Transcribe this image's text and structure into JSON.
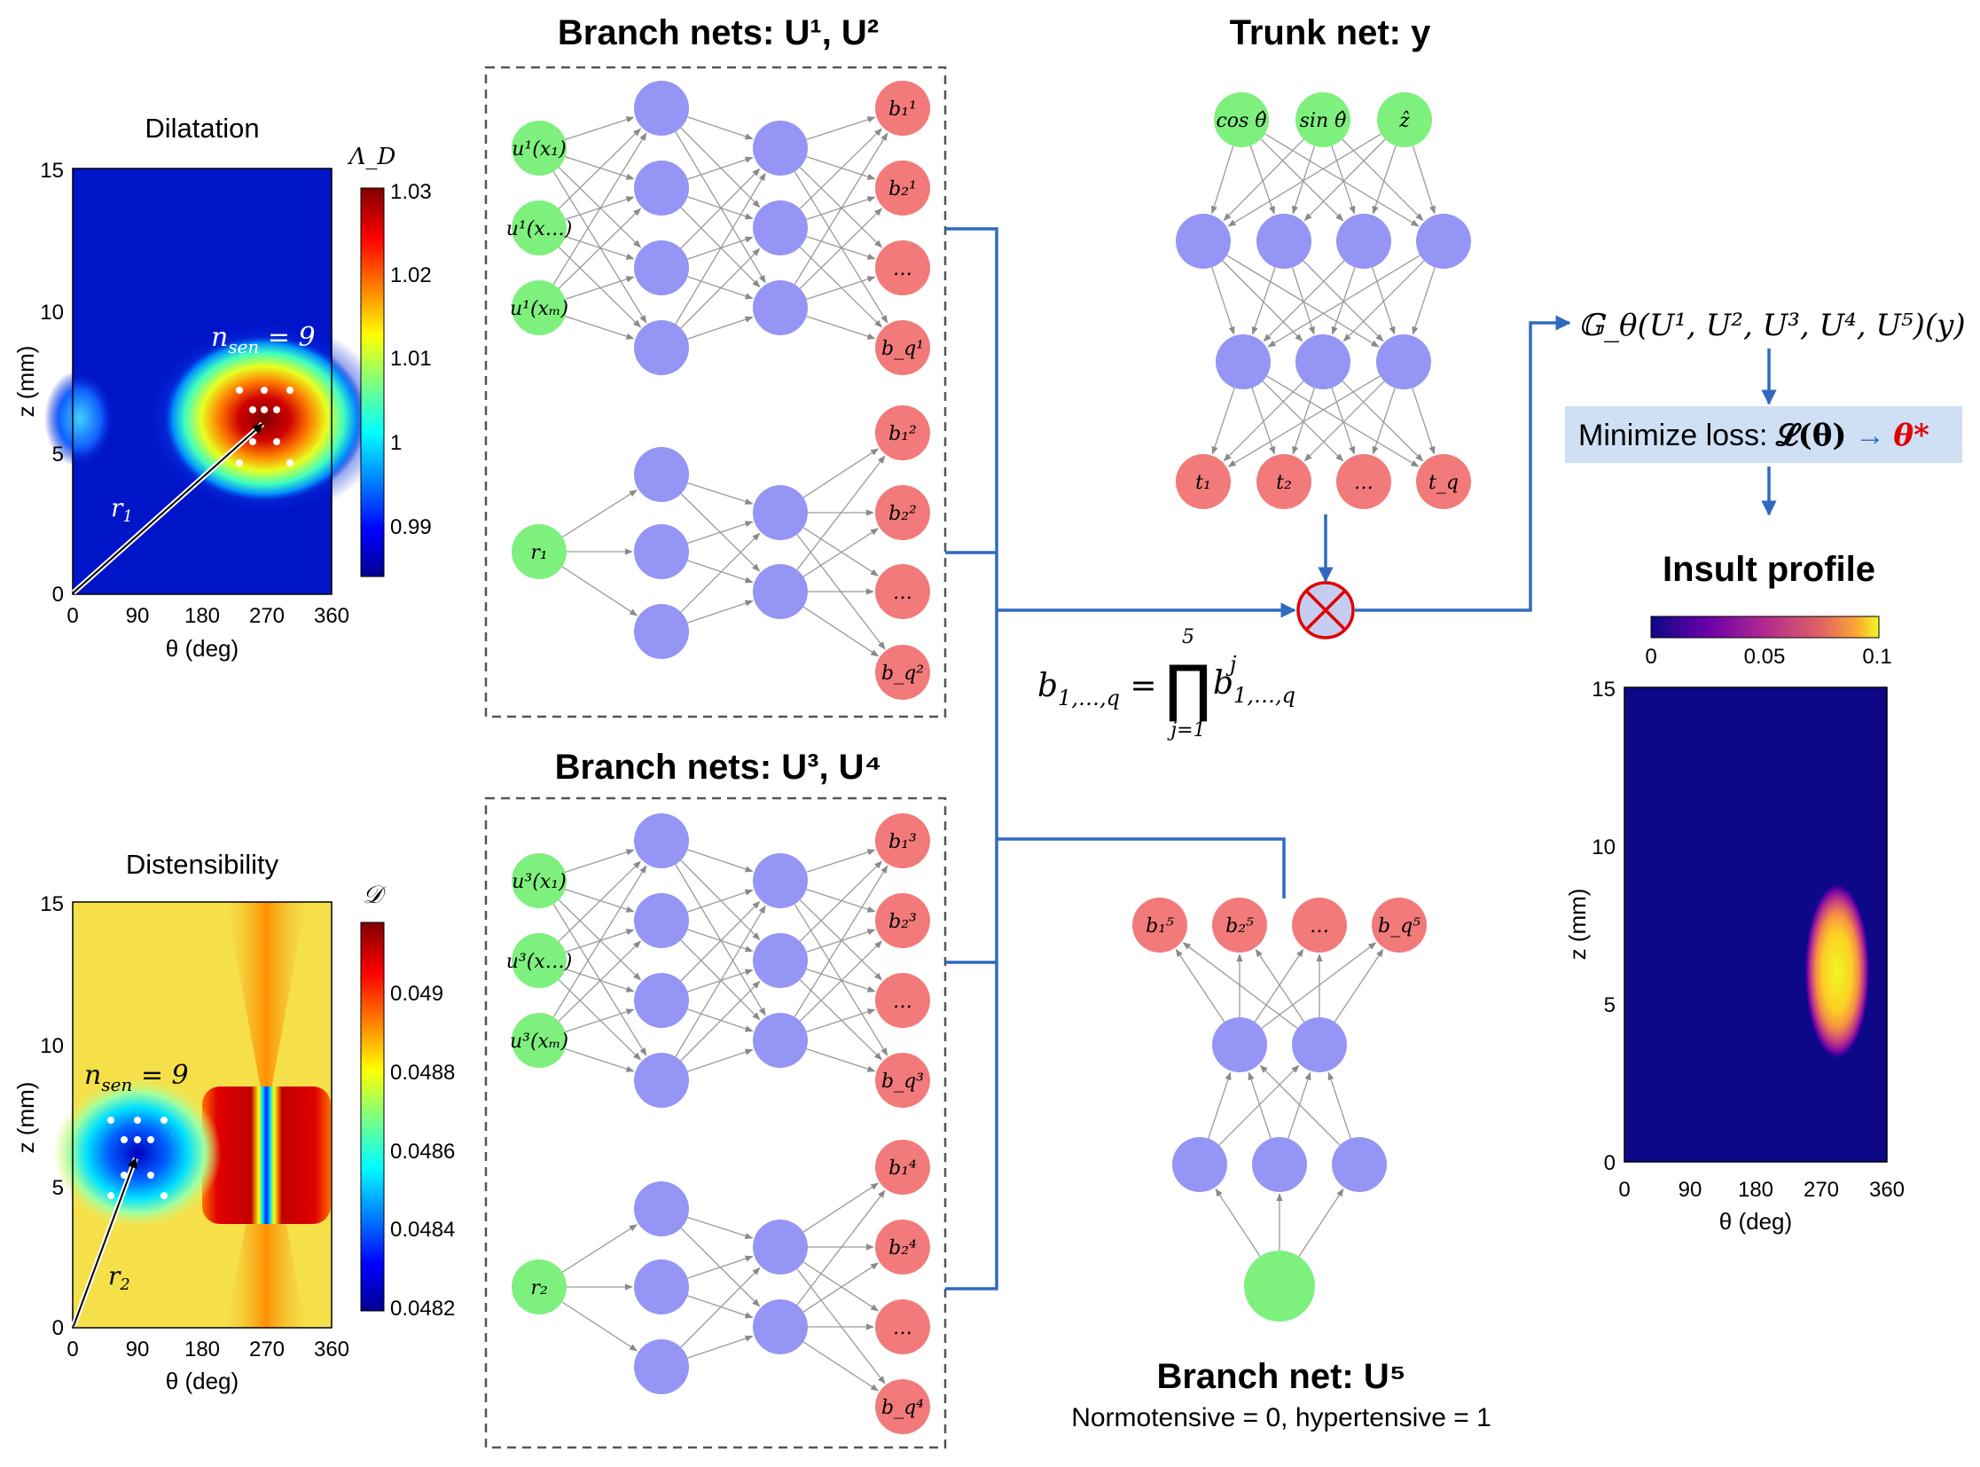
{
  "panels": {
    "dilatation": {
      "title": "Dilatation",
      "colorbar_label": "Λ_D",
      "colorbar_ticks": [
        "1.03",
        "1.02",
        "1.01",
        "1",
        "0.99"
      ],
      "y_ticks": [
        "15",
        "10",
        "5",
        "0"
      ],
      "x_ticks": [
        "0",
        "90",
        "180",
        "270",
        "360"
      ],
      "y_label": "z (mm)",
      "x_label": "θ (deg)",
      "sensor_label": "n_sen = 9",
      "radius_label": "r_1"
    },
    "distensibility": {
      "title": "Distensibility",
      "colorbar_label": "𝒟",
      "colorbar_ticks": [
        "0.049",
        "0.0488",
        "0.0486",
        "0.0484",
        "0.0482"
      ],
      "y_ticks": [
        "15",
        "10",
        "5",
        "0"
      ],
      "x_ticks": [
        "0",
        "90",
        "180",
        "270",
        "360"
      ],
      "y_label": "z (mm)",
      "x_label": "θ (deg)",
      "sensor_label": "n_sen = 9",
      "radius_label": "r_2"
    },
    "insult": {
      "title": "Insult profile",
      "colorbar_ticks": [
        "0",
        "0.05",
        "0.1"
      ],
      "y_ticks": [
        "15",
        "10",
        "5",
        "0"
      ],
      "x_ticks": [
        "0",
        "90",
        "180",
        "270",
        "360"
      ],
      "y_label": "z (mm)",
      "x_label": "θ (deg)"
    }
  },
  "networks": {
    "branch12_title": "Branch nets: U¹, U²",
    "branch34_title": "Branch nets: U³, U⁴",
    "trunk_title": "Trunk net: y",
    "branch5_title": "Branch net: U⁵",
    "branch5_caption": "Normotensive = 0, hypertensive = 1",
    "branch1_inputs": [
      "u¹(x₁)",
      "u¹(x…)",
      "u¹(xₘ)"
    ],
    "branch1_outputs": [
      "b₁¹",
      "b₂¹",
      "…",
      "b_q¹"
    ],
    "branch2_input": "r₁",
    "branch2_outputs": [
      "b₁²",
      "b₂²",
      "…",
      "b_q²"
    ],
    "branch3_inputs": [
      "u³(x₁)",
      "u³(x…)",
      "u³(xₘ)"
    ],
    "branch3_outputs": [
      "b₁³",
      "b₂³",
      "…",
      "b_q³"
    ],
    "branch4_input": "r₂",
    "branch4_outputs": [
      "b₁⁴",
      "b₂⁴",
      "…",
      "b_q⁴"
    ],
    "trunk_inputs": [
      "cos θ̂",
      "sin θ̂",
      "ẑ"
    ],
    "trunk_outputs": [
      "t₁",
      "t₂",
      "…",
      "t_q"
    ],
    "branch5_outputs": [
      "b₁⁵",
      "b₂⁵",
      "…",
      "b_q⁵"
    ]
  },
  "equations": {
    "product": "b_{1,…,q} = ∏_{j=1}^{5} b^j_{1,…,q}",
    "operator": "𝔾_θ(U¹, U², U³, U⁴, U⁵)(y)",
    "loss_prefix": "Minimize loss: ",
    "loss_expr": "𝓛(θ)",
    "loss_arrow": " → ",
    "loss_target": "θ*"
  },
  "colors": {
    "input_node": "#7ef07e",
    "hidden_node": "#9595f5",
    "output_node": "#f27a7a",
    "connector": "#2f6abf",
    "loss_box": "#cfe0f5",
    "highlight": "#e00000"
  }
}
